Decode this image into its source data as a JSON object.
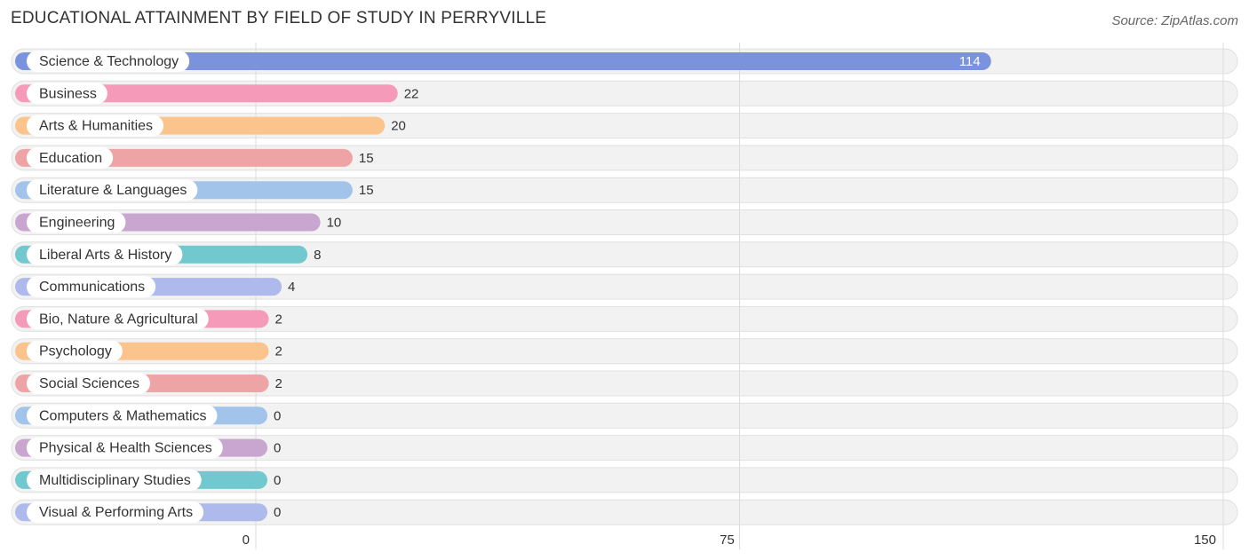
{
  "header": {
    "title": "EDUCATIONAL ATTAINMENT BY FIELD OF STUDY IN PERRYVILLE",
    "source": "Source: ZipAtlas.com"
  },
  "chart_data": {
    "type": "bar",
    "orientation": "horizontal",
    "title": "EDUCATIONAL ATTAINMENT BY FIELD OF STUDY IN PERRYVILLE",
    "xlabel": "",
    "ylabel": "",
    "xlim": [
      0,
      150
    ],
    "ticks": [
      0,
      75,
      150
    ],
    "grid": true,
    "categories": [
      "Science & Technology",
      "Business",
      "Arts & Humanities",
      "Education",
      "Literature & Languages",
      "Engineering",
      "Liberal Arts & History",
      "Communications",
      "Bio, Nature & Agricultural",
      "Psychology",
      "Social Sciences",
      "Computers & Mathematics",
      "Physical & Health Sciences",
      "Multidisciplinary Studies",
      "Visual & Performing Arts"
    ],
    "values": [
      114,
      22,
      20,
      15,
      15,
      10,
      8,
      4,
      2,
      2,
      2,
      0,
      0,
      0,
      0
    ],
    "colors": [
      "#7b93dc",
      "#f59ab8",
      "#fbc48c",
      "#eea4a4",
      "#a2c3ea",
      "#c9a6d0",
      "#71c8cf",
      "#aeb9ec",
      "#f59ab8",
      "#fbc48c",
      "#eea4a4",
      "#a2c3ea",
      "#c9a6d0",
      "#71c8cf",
      "#aeb9ec"
    ]
  }
}
